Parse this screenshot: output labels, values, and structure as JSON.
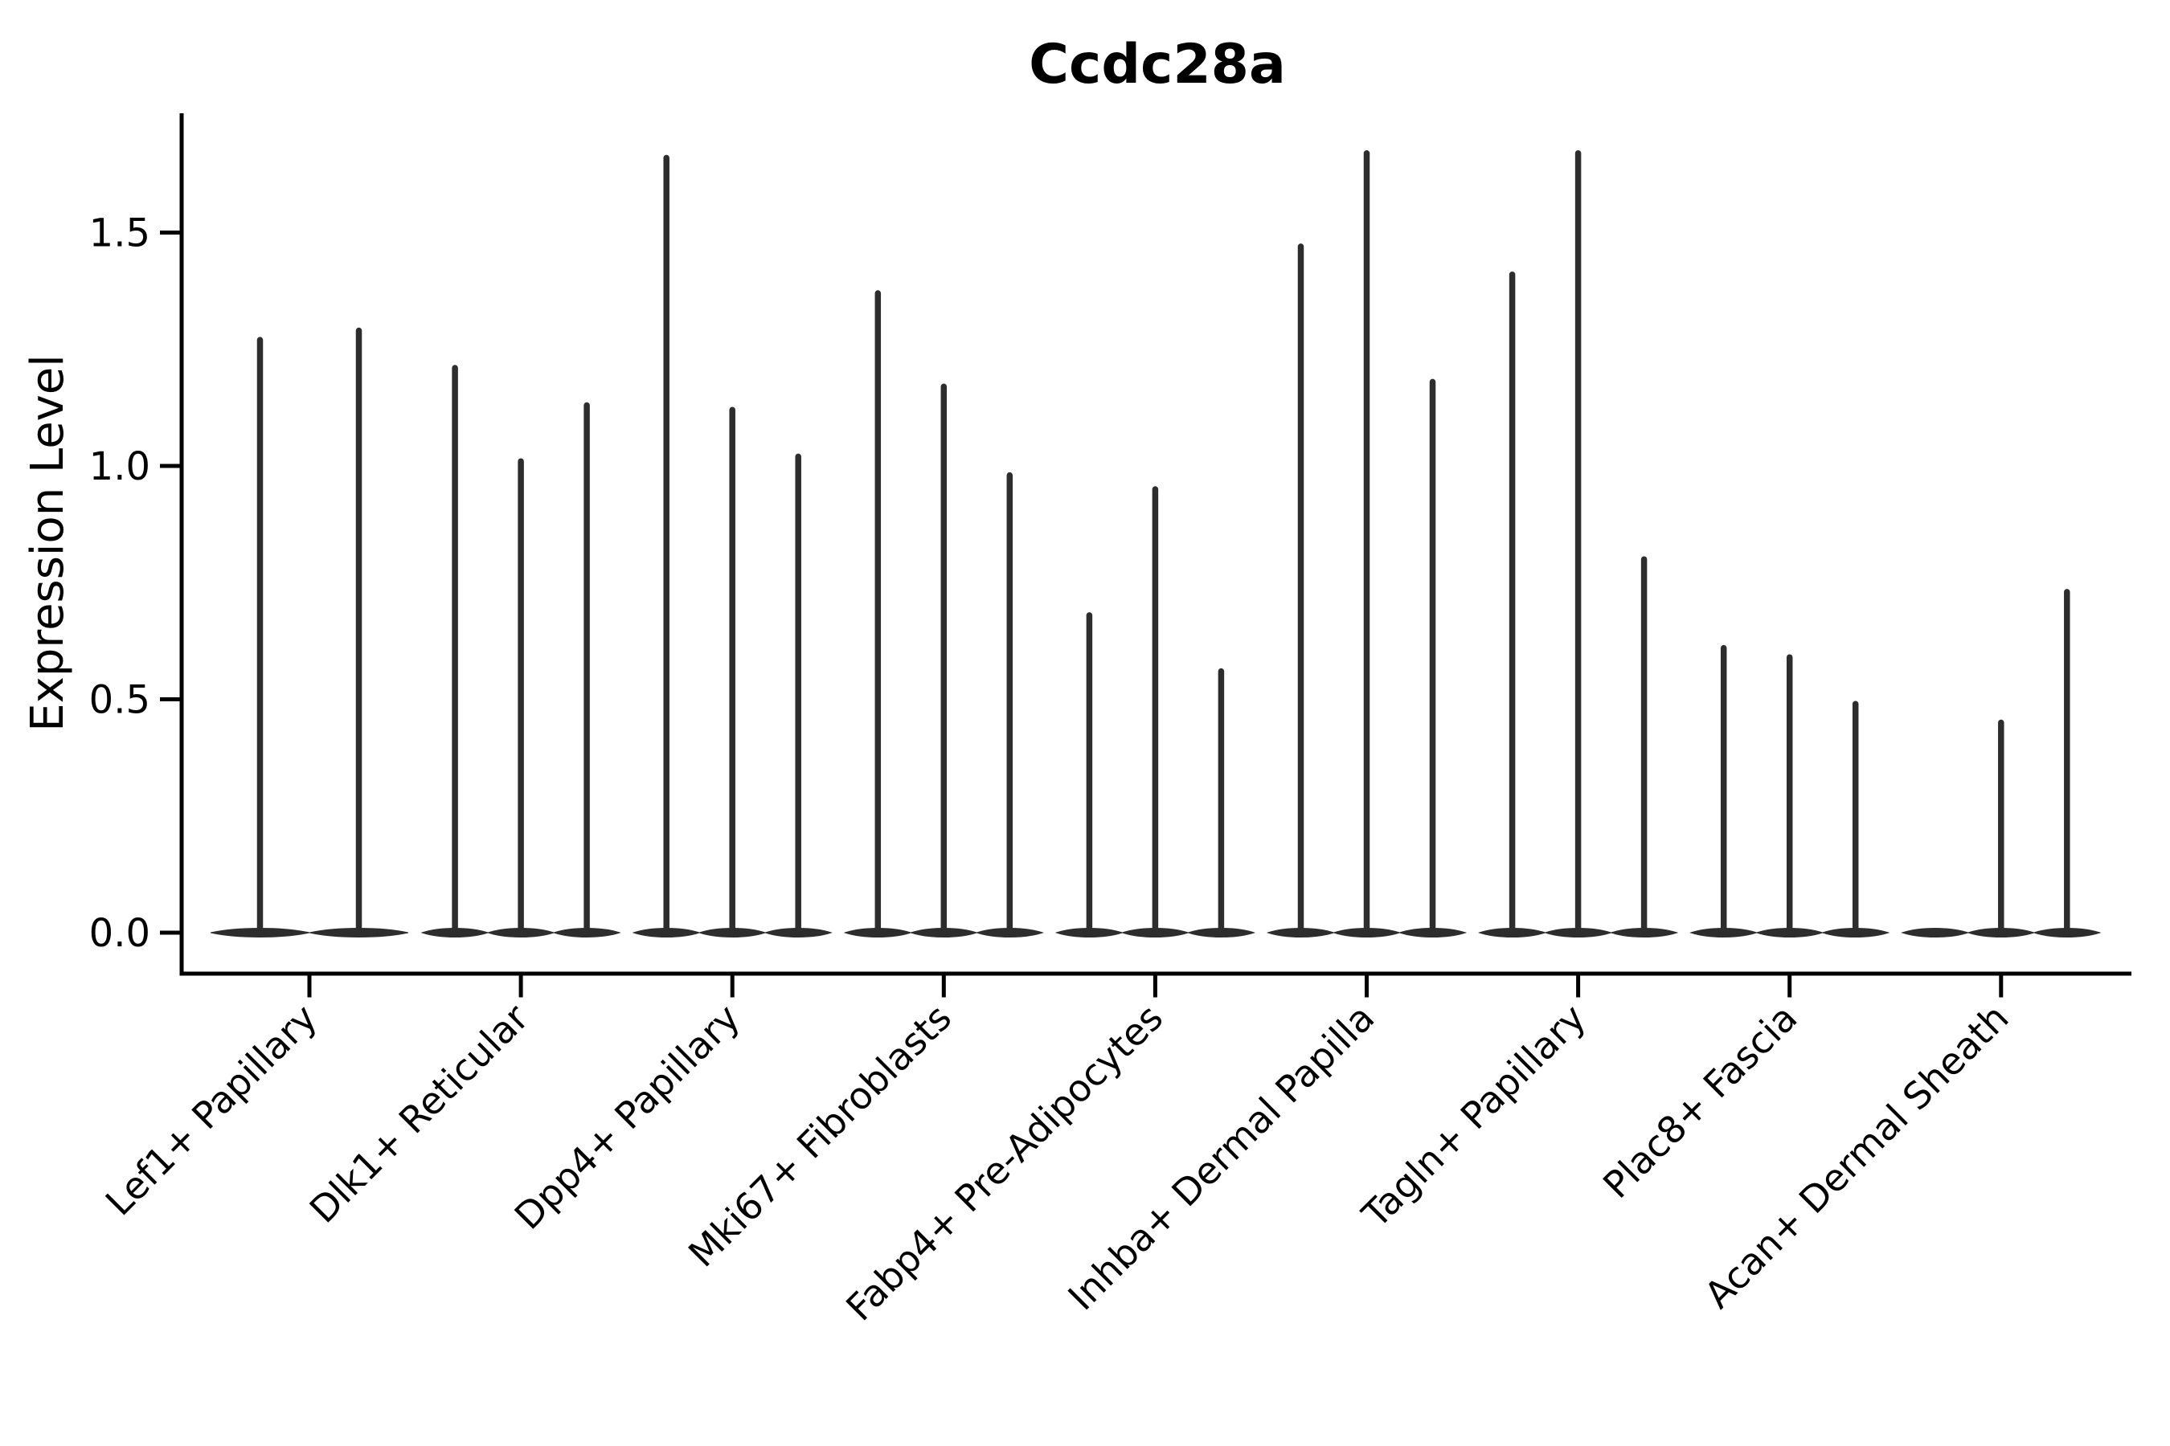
{
  "figure": {
    "title": "Ccdc28a"
  },
  "chart_data": {
    "type": "violin",
    "title": "Ccdc28a",
    "xlabel": "",
    "ylabel": "Expression Level",
    "ylim": [
      0,
      1.76
    ],
    "yticks": [
      0,
      0.5,
      1.0,
      1.5
    ],
    "ytick_labels": [
      "0.0",
      "0.5",
      "1.0",
      "1.5"
    ],
    "grid": false,
    "legend_position": "none",
    "style_note": "Each cell-type group contains thin split violins: a flat lens of mass at expression 0 with a narrow spike rising to the maximum expression value.",
    "categories": [
      "Lef1+ Papillary",
      "Dlk1+ Reticular",
      "Dpp4+ Papillary",
      "Mki67+ Fibroblasts",
      "Fabp4+ Pre-Adipocytes",
      "Inhba+ Dermal Papilla",
      "Tagln+ Papillary",
      "Plac8+ Fascia",
      "Acan+ Dermal Sheath"
    ],
    "groups": [
      {
        "label": "Lef1+ Papillary",
        "violin_max_values": [
          1.27,
          1.29
        ]
      },
      {
        "label": "Dlk1+ Reticular",
        "violin_max_values": [
          1.21,
          1.01,
          1.13
        ]
      },
      {
        "label": "Dpp4+ Papillary",
        "violin_max_values": [
          1.66,
          1.12,
          1.02
        ]
      },
      {
        "label": "Mki67+ Fibroblasts",
        "violin_max_values": [
          1.37,
          1.17,
          0.98
        ]
      },
      {
        "label": "Fabp4+ Pre-Adipocytes",
        "violin_max_values": [
          0.68,
          0.95,
          0.56
        ]
      },
      {
        "label": "Inhba+ Dermal Papilla",
        "violin_max_values": [
          1.47,
          1.67,
          1.18
        ]
      },
      {
        "label": "Tagln+ Papillary",
        "violin_max_values": [
          1.41,
          1.67,
          0.8
        ]
      },
      {
        "label": "Plac8+ Fascia",
        "violin_max_values": [
          0.61,
          0.59,
          0.49
        ]
      },
      {
        "label": "Acan+ Dermal Sheath",
        "violin_max_values": [
          0,
          0.45,
          0.73
        ]
      }
    ],
    "colors": {
      "ink": "#000000",
      "violin": "#2d2d2d",
      "background": "#ffffff"
    }
  }
}
